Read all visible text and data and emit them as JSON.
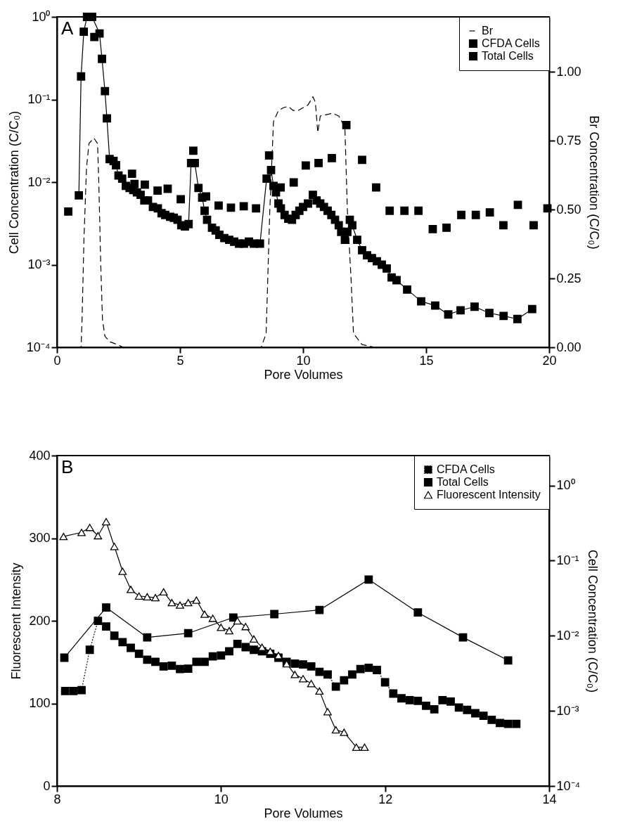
{
  "chart_data": [
    {
      "type": "line",
      "annotations": [
        "A"
      ],
      "xlabel": "Pore Volumes",
      "ylabel": "Cell Concentration (C/C₀)",
      "y2label": "Br Concentration (C/C₀)",
      "xlim": [
        0,
        20
      ],
      "xticks": [
        0,
        5,
        10,
        15,
        20
      ],
      "ylim": [
        0.0001,
        1
      ],
      "yticks": [
        {
          "value": 0.0001,
          "label": "10⁻⁴"
        },
        {
          "value": 0.001,
          "label": "10⁻³"
        },
        {
          "value": 0.01,
          "label": "10⁻²"
        },
        {
          "value": 0.1,
          "label": "10⁻¹"
        },
        {
          "value": 1,
          "label": "10⁰"
        }
      ],
      "y2lim": [
        0,
        1.2
      ],
      "y2ticks": [
        {
          "value": 0,
          "label": "0.00"
        },
        {
          "value": 0.25,
          "label": "0.25"
        },
        {
          "value": 0.5,
          "label": "0.50"
        },
        {
          "value": 0.75,
          "label": "0.75"
        },
        {
          "value": 1,
          "label": "1.00"
        }
      ],
      "log": "y",
      "grid": false,
      "legend": "top right",
      "series": [
        {
          "name": "Br",
          "axis": "y2",
          "color": "#000000",
          "line_style": "dashed",
          "marker": "none",
          "x": [
            0,
            0.98,
            1.02,
            1.1,
            1.2,
            1.3,
            1.5,
            1.65,
            1.7,
            1.78,
            1.85,
            1.95,
            2.15,
            2.45,
            2.7,
            8.3,
            8.5,
            8.65,
            8.8,
            9.0,
            9.2,
            9.4,
            9.6,
            9.8,
            10.0,
            10.2,
            10.4,
            10.5,
            10.6,
            10.7,
            10.95,
            11.2,
            11.45,
            11.7,
            11.8,
            11.95,
            12.05,
            12.4,
            12.9,
            20
          ],
          "values": [
            0,
            0,
            0.1,
            0.4,
            0.65,
            0.74,
            0.76,
            0.74,
            0.6,
            0.3,
            0.1,
            0.04,
            0.02,
            0.01,
            0,
            0,
            0.05,
            0.5,
            0.82,
            0.86,
            0.87,
            0.875,
            0.86,
            0.86,
            0.87,
            0.88,
            0.91,
            0.89,
            0.78,
            0.84,
            0.845,
            0.85,
            0.84,
            0.8,
            0.5,
            0.25,
            0.05,
            0.01,
            0,
            0
          ]
        },
        {
          "name": "CFDA Cells",
          "color": "#000000",
          "line_style": "solid",
          "marker": "square",
          "x": [
            0.89,
            0.98,
            1.09,
            1.22,
            1.43,
            1.73,
            1.83,
            1.95,
            2.03,
            2.14,
            2.3,
            2.4,
            2.5,
            2.65,
            2.8,
            2.95,
            3.1,
            3.25,
            3.4,
            3.55,
            3.7,
            3.9,
            4.1,
            4.25,
            4.4,
            4.6,
            4.75,
            4.9,
            5.05,
            5.2,
            5.35,
            5.45,
            5.6,
            5.75,
            5.9,
            6.0,
            6.1,
            6.3,
            6.45,
            6.6,
            6.8,
            7.0,
            7.2,
            7.4,
            7.6,
            7.8,
            8.0,
            8.25,
            8.52,
            8.7,
            8.8,
            8.9,
            9.0,
            9.1,
            9.25,
            9.4,
            9.55,
            9.7,
            9.85,
            10.0,
            10.2,
            10.4,
            10.55,
            10.7,
            10.85,
            11.0,
            11.15,
            11.3,
            11.45,
            11.55,
            11.7,
            11.8,
            11.9,
            12.0,
            12.2,
            12.4,
            12.6,
            12.8,
            13.0,
            13.2,
            13.4,
            13.6,
            13.8,
            14.23,
            14.8,
            15.37,
            15.9,
            16.4,
            16.97,
            17.57,
            18.15,
            18.71,
            19.31
          ],
          "values": [
            0.0069,
            0.19,
            0.66,
            1.0,
            1.0,
            0.63,
            0.31,
            0.126,
            0.059,
            0.019,
            0.018,
            0.016,
            0.012,
            0.011,
            0.009,
            0.0085,
            0.008,
            0.0075,
            0.007,
            0.006,
            0.006,
            0.005,
            0.0048,
            0.0042,
            0.004,
            0.0038,
            0.0037,
            0.0035,
            0.003,
            0.0029,
            0.0031,
            0.017,
            0.017,
            0.0085,
            0.0065,
            0.0045,
            0.0035,
            0.0028,
            0.0026,
            0.0023,
            0.0021,
            0.002,
            0.0019,
            0.0018,
            0.0018,
            0.0019,
            0.0018,
            0.0018,
            0.011,
            0.014,
            0.009,
            0.0075,
            0.0055,
            0.0048,
            0.004,
            0.0036,
            0.0035,
            0.004,
            0.0045,
            0.005,
            0.0055,
            0.007,
            0.006,
            0.0055,
            0.005,
            0.0045,
            0.004,
            0.0035,
            0.003,
            0.0025,
            0.002,
            0.0025,
            0.0035,
            0.003,
            0.002,
            0.0015,
            0.0013,
            0.0012,
            0.0011,
            0.001,
            0.0009,
            0.0007,
            0.00065,
            0.0005,
            0.00036,
            0.00032,
            0.00025,
            0.00028,
            0.00031,
            0.00026,
            0.00024,
            0.00022,
            0.00029
          ]
        },
        {
          "name": "Total Cells",
          "type": "scatter",
          "color": "#000000",
          "marker": "square",
          "x": [
            0.46,
            1.52,
            3.05,
            3.15,
            3.57,
            4.09,
            4.5,
            5.03,
            5.54,
            6.06,
            6.57,
            7.07,
            7.59,
            8.09,
            8.62,
            9.09,
            9.62,
            10.11,
            10.63,
            11.17,
            11.76,
            12.4,
            12.97,
            13.52,
            14.12,
            14.69,
            15.27,
            15.83,
            16.43,
            17.02,
            17.59,
            18.14,
            18.73,
            19.37,
            19.93
          ],
          "values": [
            0.0044,
            0.57,
            0.0126,
            0.0095,
            0.0093,
            0.0079,
            0.0083,
            0.0062,
            0.024,
            0.0067,
            0.0052,
            0.0049,
            0.0051,
            0.0048,
            0.021,
            0.0086,
            0.0099,
            0.0159,
            0.017,
            0.0195,
            0.049,
            0.0186,
            0.0086,
            0.0045,
            0.0045,
            0.0045,
            0.0027,
            0.0028,
            0.004,
            0.004,
            0.0043,
            0.003,
            0.0053,
            0.003,
            0.0048
          ]
        }
      ]
    },
    {
      "type": "line",
      "annotations": [
        "B"
      ],
      "xlabel": "Pore Volumes",
      "ylabel": "Fluorescent Intensity",
      "y2label": "Cell Concentration (C/C₀)",
      "xlim": [
        8,
        14
      ],
      "xticks": [
        8,
        10,
        12,
        14
      ],
      "ylim": [
        0,
        400
      ],
      "yticks": [
        0,
        100,
        200,
        300,
        400
      ],
      "y2lim": [
        0.0001,
        2.5
      ],
      "y2ticks": [
        {
          "value": 0.0001,
          "label": "10⁻⁴"
        },
        {
          "value": 0.001,
          "label": "10⁻³"
        },
        {
          "value": 0.01,
          "label": "10⁻²"
        },
        {
          "value": 0.1,
          "label": "10⁻¹"
        },
        {
          "value": 1,
          "label": "10⁰"
        }
      ],
      "log": "y2",
      "grid": false,
      "legend": "top right",
      "series": [
        {
          "name": "CFDA Cells",
          "axis": "y2",
          "color": "#000000",
          "line_style": "dotted",
          "marker": "square",
          "x": [
            8.1,
            8.2,
            8.3,
            8.4,
            8.5,
            8.6,
            8.7,
            8.8,
            8.9,
            9.0,
            9.1,
            9.2,
            9.3,
            9.4,
            9.5,
            9.6,
            9.7,
            9.8,
            9.9,
            10.0,
            10.1,
            10.2,
            10.3,
            10.4,
            10.5,
            10.6,
            10.7,
            10.8,
            10.9,
            11.0,
            11.1,
            11.2,
            11.3,
            11.4,
            11.5,
            11.6,
            11.7,
            11.8,
            11.9,
            12.0,
            12.1,
            12.2,
            12.3,
            12.4,
            12.5,
            12.6,
            12.7,
            12.8,
            12.9,
            13.0,
            13.1,
            13.2,
            13.3,
            13.4,
            13.5,
            13.6
          ],
          "values": [
            0.00184,
            0.00184,
            0.00189,
            0.0065,
            0.0158,
            0.0133,
            0.01,
            0.0082,
            0.0069,
            0.00575,
            0.0048,
            0.0045,
            0.0039,
            0.004,
            0.0036,
            0.00365,
            0.0045,
            0.0045,
            0.0053,
            0.00545,
            0.0062,
            0.0078,
            0.00705,
            0.0065,
            0.0062,
            0.00575,
            0.0051,
            0.0045,
            0.00425,
            0.00415,
            0.0039,
            0.0033,
            0.00305,
            0.0021,
            0.00255,
            0.00305,
            0.0036,
            0.00375,
            0.0035,
            0.0024,
            0.0017,
            0.00147,
            0.00139,
            0.00136,
            0.00117,
            0.00105,
            0.00139,
            0.00133,
            0.00111,
            0.00103,
            0.00093,
            0.00086,
            0.00076,
            0.00069,
            0.00067,
            0.00067
          ]
        },
        {
          "name": "Total Cells",
          "axis": "y2",
          "color": "#000000",
          "line_style": "solid",
          "marker": "square",
          "x": [
            8.09,
            8.6,
            9.1,
            9.6,
            10.15,
            10.65,
            11.2,
            11.8,
            12.4,
            12.95,
            13.5
          ],
          "values": [
            0.0051,
            0.0238,
            0.0095,
            0.0108,
            0.0175,
            0.0194,
            0.022,
            0.056,
            0.0204,
            0.0095,
            0.0047
          ]
        },
        {
          "name": "Fluorescent Intensity",
          "color": "#000000",
          "line_style": "solid",
          "marker": "triangle",
          "x": [
            8.08,
            8.3,
            8.4,
            8.5,
            8.6,
            8.7,
            8.8,
            8.9,
            9.0,
            9.1,
            9.2,
            9.3,
            9.4,
            9.5,
            9.6,
            9.7,
            9.8,
            9.9,
            10.0,
            10.1,
            10.2,
            10.3,
            10.4,
            10.5,
            10.6,
            10.7,
            10.8,
            10.9,
            11.0,
            11.1,
            11.2,
            11.3,
            11.4,
            11.5,
            11.65,
            11.75
          ],
          "values": [
            302,
            307,
            313,
            303,
            320,
            290,
            260,
            238,
            230,
            229,
            228,
            235,
            222,
            219,
            222,
            225,
            208,
            203,
            192,
            188,
            200,
            193,
            178,
            168,
            163,
            158,
            148,
            135,
            130,
            124,
            115,
            90,
            68,
            65,
            47,
            47
          ]
        }
      ]
    }
  ]
}
